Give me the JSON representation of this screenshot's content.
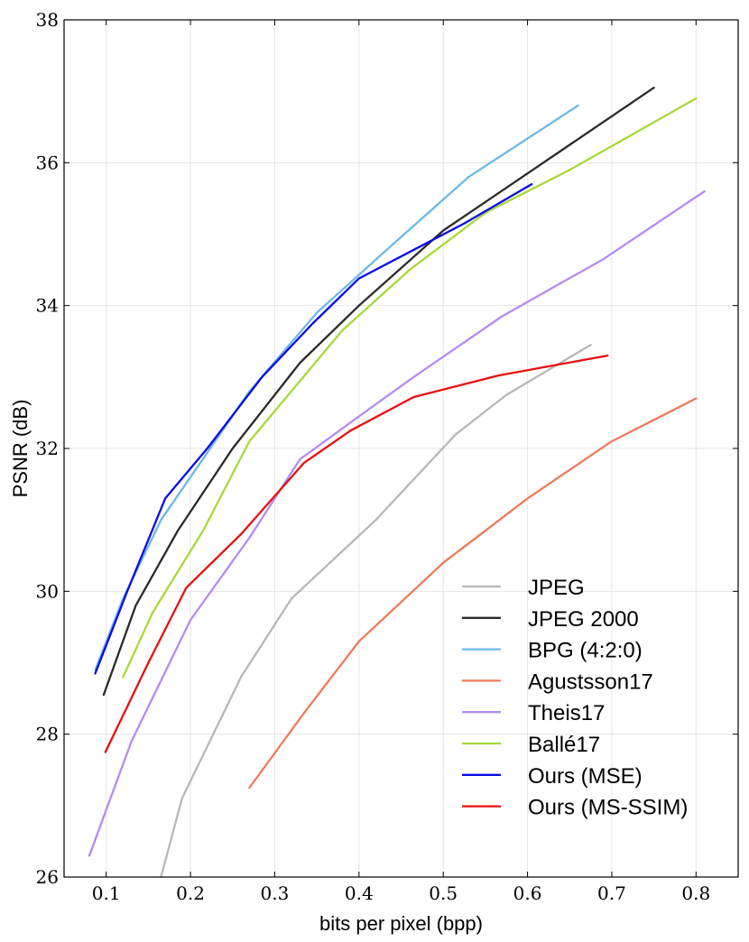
{
  "chart_data": {
    "type": "line",
    "xlabel": "bits per pixel (bpp)",
    "ylabel": "PSNR (dB)",
    "xlim": [
      0.05,
      0.85
    ],
    "ylim": [
      26,
      38
    ],
    "xticks": [
      0.1,
      0.2,
      0.3,
      0.4,
      0.5,
      0.6,
      0.7,
      0.8
    ],
    "yticks": [
      26,
      28,
      30,
      32,
      34,
      36,
      38
    ],
    "grid": true,
    "legend_position": "bottom-right",
    "series": [
      {
        "name": "JPEG",
        "color": "#b8b8b8",
        "x": [
          0.165,
          0.19,
          0.26,
          0.32,
          0.42,
          0.515,
          0.575,
          0.675
        ],
        "y": [
          26.0,
          27.1,
          28.8,
          29.9,
          31.0,
          32.2,
          32.75,
          33.45
        ]
      },
      {
        "name": "JPEG 2000",
        "color": "#2b2b2b",
        "x": [
          0.097,
          0.135,
          0.185,
          0.25,
          0.33,
          0.4,
          0.5,
          0.6,
          0.75
        ],
        "y": [
          28.55,
          29.8,
          30.85,
          32.0,
          33.2,
          34.0,
          35.05,
          35.85,
          37.05
        ]
      },
      {
        "name": "BPG (4:2:0)",
        "color": "#6cb8e6",
        "x": [
          0.087,
          0.12,
          0.165,
          0.2,
          0.27,
          0.35,
          0.43,
          0.53,
          0.66
        ],
        "y": [
          28.9,
          29.9,
          31.0,
          31.6,
          32.8,
          33.9,
          34.75,
          35.8,
          36.8
        ]
      },
      {
        "name": "Agustsson17",
        "color": "#f07a5a",
        "x": [
          0.27,
          0.335,
          0.4,
          0.5,
          0.6,
          0.7,
          0.8
        ],
        "y": [
          27.25,
          28.3,
          29.3,
          30.4,
          31.3,
          32.1,
          32.7
        ]
      },
      {
        "name": "Theis17",
        "color": "#b38cf2",
        "x": [
          0.08,
          0.13,
          0.2,
          0.27,
          0.33,
          0.4,
          0.465,
          0.57,
          0.69,
          0.81
        ],
        "y": [
          26.3,
          27.9,
          29.6,
          30.75,
          31.85,
          32.45,
          33.0,
          33.85,
          34.65,
          35.6
        ]
      },
      {
        "name": "Ballé17",
        "color": "#a8d83a",
        "x": [
          0.12,
          0.155,
          0.215,
          0.27,
          0.38,
          0.46,
          0.55,
          0.65,
          0.8
        ],
        "y": [
          28.8,
          29.7,
          30.85,
          32.1,
          33.65,
          34.5,
          35.3,
          35.9,
          36.9
        ]
      },
      {
        "name": "Ours (MSE)",
        "color": "#0b0be8",
        "x": [
          0.087,
          0.125,
          0.17,
          0.22,
          0.285,
          0.345,
          0.4,
          0.46,
          0.525,
          0.605
        ],
        "y": [
          28.85,
          30.0,
          31.3,
          32.0,
          33.0,
          33.75,
          34.38,
          34.75,
          35.15,
          35.7
        ]
      },
      {
        "name": "Ours (MS-SSIM)",
        "color": "#e81010",
        "x": [
          0.099,
          0.15,
          0.195,
          0.26,
          0.335,
          0.39,
          0.465,
          0.565,
          0.695
        ],
        "y": [
          27.75,
          29.0,
          30.05,
          30.8,
          31.8,
          32.25,
          32.72,
          33.02,
          33.3
        ]
      }
    ]
  }
}
